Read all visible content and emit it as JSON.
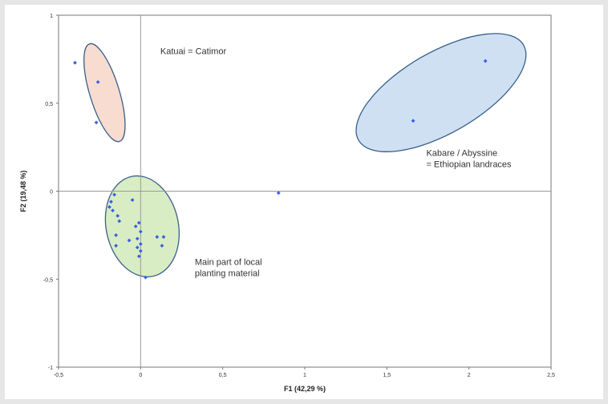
{
  "chart_data": {
    "type": "scatter",
    "title": "",
    "xlabel": "F1 (42,29 %)",
    "ylabel": "F2 (19,48 %)",
    "xlim": [
      -0.5,
      2.5
    ],
    "ylim": [
      -1,
      1
    ],
    "x_ticks": [
      "-0,5",
      "0",
      "0,5",
      "1",
      "1,5",
      "2",
      "2,5"
    ],
    "y_ticks": [
      "1",
      "0,5",
      "0",
      "-0,5",
      "-1"
    ],
    "grid": false,
    "legend": "none",
    "zero_lines": true,
    "point_color": "#3b5fe0",
    "points": [
      [
        -0.4,
        0.73
      ],
      [
        -0.26,
        0.62
      ],
      [
        -0.27,
        0.39
      ],
      [
        -0.16,
        -0.02
      ],
      [
        -0.18,
        -0.06
      ],
      [
        -0.19,
        -0.09
      ],
      [
        -0.17,
        -0.11
      ],
      [
        -0.14,
        -0.14
      ],
      [
        -0.13,
        -0.17
      ],
      [
        -0.05,
        -0.05
      ],
      [
        -0.03,
        -0.2
      ],
      [
        -0.01,
        -0.18
      ],
      [
        0.0,
        -0.23
      ],
      [
        -0.15,
        -0.25
      ],
      [
        -0.15,
        -0.31
      ],
      [
        -0.07,
        -0.28
      ],
      [
        -0.02,
        -0.27
      ],
      [
        0.0,
        -0.3
      ],
      [
        -0.02,
        -0.32
      ],
      [
        0.0,
        -0.34
      ],
      [
        -0.01,
        -0.37
      ],
      [
        0.03,
        -0.49
      ],
      [
        0.1,
        -0.26
      ],
      [
        0.14,
        -0.26
      ],
      [
        0.13,
        -0.31
      ],
      [
        0.84,
        -0.01
      ],
      [
        1.66,
        0.4
      ],
      [
        2.1,
        0.74
      ]
    ],
    "groups": [
      {
        "label": "Katuai = Catimor",
        "fill": "#f8dcd0",
        "stroke": "#3a5f8a",
        "ellipse": {
          "cx": -0.22,
          "cy": 0.56,
          "rx": 0.09,
          "ry": 0.29,
          "rotate": -17
        }
      },
      {
        "label": "Main part of local planting material",
        "fill": "#d8edc4",
        "stroke": "#3a5f8a",
        "ellipse": {
          "cx": 0.01,
          "cy": -0.2,
          "rx": 0.22,
          "ry": 0.29,
          "rotate": -12
        }
      },
      {
        "label": "Kabare / Abyssine = Ethiopian landraces",
        "fill": "#cfe0f3",
        "stroke": "#3a5f8a",
        "ellipse": {
          "cx": 1.83,
          "cy": 0.56,
          "rx": 0.58,
          "ry": 0.23,
          "rotate": -30
        }
      }
    ],
    "annotations": [
      [
        "Katuai = Catimor"
      ],
      [
        "Main part of local",
        "planting material"
      ],
      [
        "Kabare / Abyssine",
        "= Ethiopian landraces"
      ]
    ]
  }
}
